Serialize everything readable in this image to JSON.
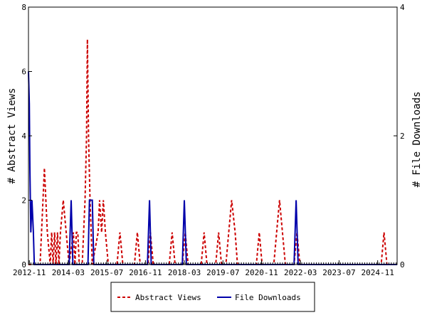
{
  "chart_data": {
    "type": "line",
    "title": "",
    "xlabel": "",
    "ylabel_left": "# Abstract Views",
    "ylabel_right": "# File Downloads",
    "x_range": [
      2012.8,
      2025.5
    ],
    "ylim_left": [
      0,
      8
    ],
    "ylim_right": [
      0,
      4
    ],
    "yticks_left": [
      "0",
      "2",
      "4",
      "6",
      "8"
    ],
    "yticks_right": [
      "0",
      "2",
      "4"
    ],
    "xticks": [
      {
        "label": "2012-11",
        "x": 2012.83
      },
      {
        "label": "2014-03",
        "x": 2014.17
      },
      {
        "label": "2015-07",
        "x": 2015.5
      },
      {
        "label": "2016-11",
        "x": 2016.83
      },
      {
        "label": "2018-03",
        "x": 2018.17
      },
      {
        "label": "2019-07",
        "x": 2019.5
      },
      {
        "label": "2020-11",
        "x": 2020.83
      },
      {
        "label": "2022-03",
        "x": 2022.17
      },
      {
        "label": "2023-07",
        "x": 2023.5
      },
      {
        "label": "2024-11",
        "x": 2024.83
      }
    ],
    "grid": false,
    "legend_position": "bottom",
    "series": [
      {
        "name": "Abstract Views",
        "axis": "left",
        "color": "#cc0000",
        "style": "dashed",
        "points": [
          [
            2012.8,
            0
          ],
          [
            2013.2,
            0
          ],
          [
            2013.3,
            2
          ],
          [
            2013.35,
            3
          ],
          [
            2013.45,
            1
          ],
          [
            2013.55,
            0
          ],
          [
            2013.6,
            1
          ],
          [
            2013.65,
            0
          ],
          [
            2013.7,
            1
          ],
          [
            2013.75,
            0
          ],
          [
            2013.8,
            1
          ],
          [
            2013.85,
            0
          ],
          [
            2013.9,
            1
          ],
          [
            2014.0,
            2
          ],
          [
            2014.1,
            1
          ],
          [
            2014.2,
            0
          ],
          [
            2014.35,
            1
          ],
          [
            2014.4,
            0
          ],
          [
            2014.45,
            1
          ],
          [
            2014.5,
            1
          ],
          [
            2014.55,
            0
          ],
          [
            2014.65,
            0
          ],
          [
            2014.75,
            2
          ],
          [
            2014.8,
            4
          ],
          [
            2014.83,
            7
          ],
          [
            2014.87,
            4
          ],
          [
            2014.92,
            2
          ],
          [
            2015.0,
            0
          ],
          [
            2015.2,
            1
          ],
          [
            2015.25,
            2
          ],
          [
            2015.32,
            1
          ],
          [
            2015.38,
            2
          ],
          [
            2015.45,
            1
          ],
          [
            2015.55,
            0
          ],
          [
            2015.85,
            0
          ],
          [
            2015.95,
            1
          ],
          [
            2016.05,
            0
          ],
          [
            2016.45,
            0
          ],
          [
            2016.55,
            1
          ],
          [
            2016.65,
            0
          ],
          [
            2016.92,
            0
          ],
          [
            2017.0,
            1
          ],
          [
            2017.1,
            0
          ],
          [
            2017.65,
            0
          ],
          [
            2017.75,
            1
          ],
          [
            2017.85,
            0
          ],
          [
            2018.1,
            0
          ],
          [
            2018.2,
            1
          ],
          [
            2018.3,
            0
          ],
          [
            2018.75,
            0
          ],
          [
            2018.85,
            1
          ],
          [
            2018.95,
            0
          ],
          [
            2019.25,
            0
          ],
          [
            2019.35,
            1
          ],
          [
            2019.45,
            0
          ],
          [
            2019.6,
            0
          ],
          [
            2019.7,
            1
          ],
          [
            2019.8,
            2
          ],
          [
            2019.92,
            1
          ],
          [
            2020.0,
            0
          ],
          [
            2020.65,
            0
          ],
          [
            2020.75,
            1
          ],
          [
            2020.85,
            0
          ],
          [
            2021.25,
            0
          ],
          [
            2021.35,
            1
          ],
          [
            2021.45,
            2
          ],
          [
            2021.55,
            1
          ],
          [
            2021.65,
            0
          ],
          [
            2021.95,
            0
          ],
          [
            2022.05,
            1
          ],
          [
            2022.15,
            0
          ],
          [
            2024.95,
            0
          ],
          [
            2025.05,
            1
          ],
          [
            2025.15,
            0
          ],
          [
            2025.5,
            0
          ]
        ]
      },
      {
        "name": "File Downloads",
        "axis": "right",
        "color": "#0000aa",
        "style": "solid",
        "points": [
          [
            2012.8,
            3
          ],
          [
            2012.83,
            2.5
          ],
          [
            2012.85,
            1.5
          ],
          [
            2012.88,
            0.5
          ],
          [
            2012.92,
            1
          ],
          [
            2012.97,
            0.5
          ],
          [
            2013.0,
            0
          ],
          [
            2014.2,
            0
          ],
          [
            2014.27,
            1
          ],
          [
            2014.33,
            0
          ],
          [
            2014.85,
            0
          ],
          [
            2014.9,
            1
          ],
          [
            2015.0,
            1
          ],
          [
            2015.05,
            0
          ],
          [
            2016.9,
            0
          ],
          [
            2016.97,
            1
          ],
          [
            2017.03,
            0
          ],
          [
            2018.1,
            0
          ],
          [
            2018.17,
            1
          ],
          [
            2018.24,
            0
          ],
          [
            2021.95,
            0
          ],
          [
            2022.02,
            1
          ],
          [
            2022.09,
            0
          ],
          [
            2025.5,
            0
          ]
        ]
      }
    ],
    "legend": [
      {
        "label": "Abstract Views",
        "color": "#cc0000",
        "style": "dashed"
      },
      {
        "label": "File Downloads",
        "color": "#0000aa",
        "style": "solid"
      }
    ]
  }
}
